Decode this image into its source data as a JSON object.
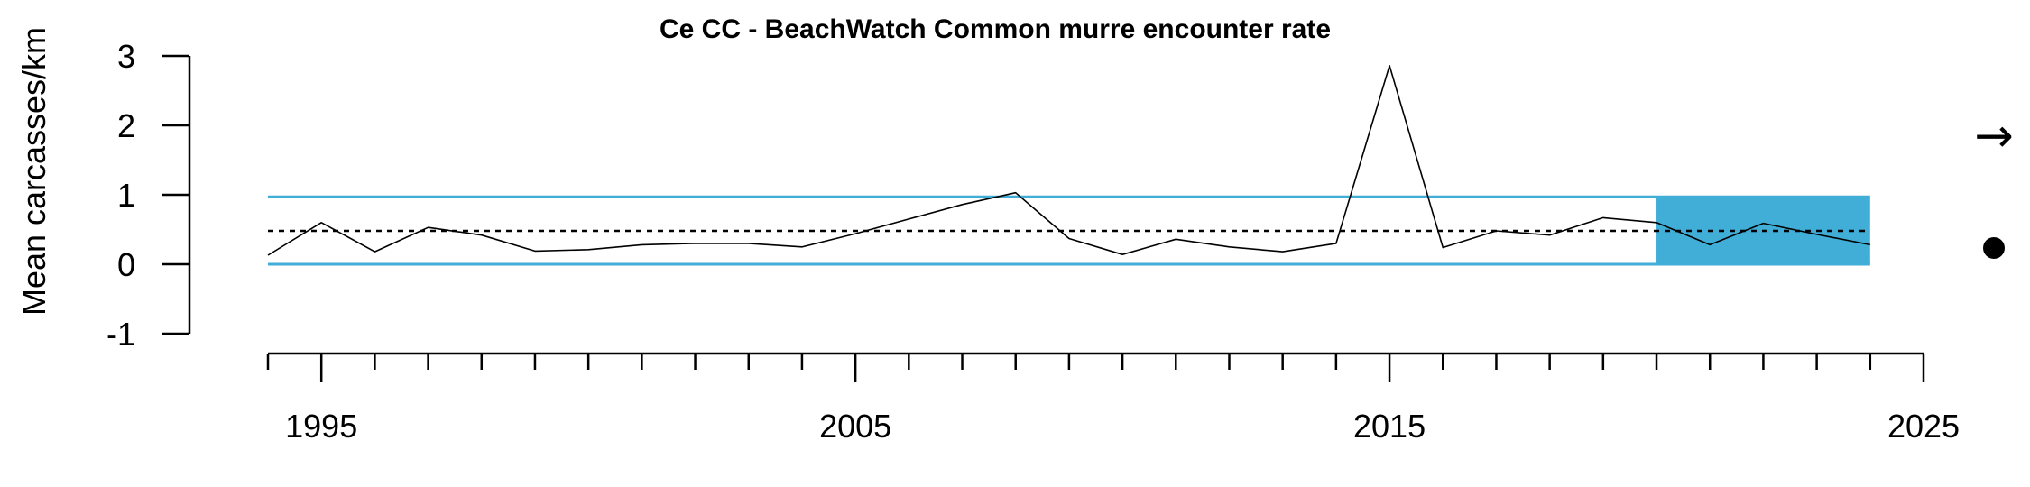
{
  "chart_data": {
    "type": "line",
    "title": "Ce CC - BeachWatch Common murre encounter rate",
    "xlabel": "",
    "ylabel": "Mean carcasses/km",
    "xlim": [
      1994,
      2025
    ],
    "ylim": [
      -1,
      3
    ],
    "x_ticks": [
      1995,
      2005,
      2015,
      2025
    ],
    "y_ticks": [
      -1,
      0,
      1,
      2,
      3
    ],
    "series": [
      {
        "x": [
          1994,
          1995,
          1996,
          1997,
          1998,
          1999,
          2000,
          2001,
          2002,
          2003,
          2004,
          2005,
          2006,
          2007,
          2008,
          2009,
          2010,
          2011,
          2012,
          2013,
          2014,
          2015,
          2016,
          2017,
          2018,
          2019,
          2020,
          2021,
          2022,
          2023,
          2024
        ],
        "values": [
          0.13,
          0.6,
          0.18,
          0.53,
          0.42,
          0.19,
          0.21,
          0.28,
          0.3,
          0.3,
          0.25,
          0.44,
          0.65,
          0.86,
          1.03,
          0.37,
          0.14,
          0.36,
          0.25,
          0.18,
          0.3,
          2.86,
          0.24,
          0.48,
          0.42,
          0.67,
          0.6,
          0.28,
          0.59,
          0.43,
          0.28
        ]
      }
    ],
    "mean": 0.48,
    "upper_band": 0.97,
    "lower_band": 0.0,
    "highlight_period": [
      2020,
      2024
    ],
    "colors": {
      "band": "#41aed8",
      "line": "#000000"
    },
    "trend_symbol": "→",
    "status_symbol": "●"
  }
}
